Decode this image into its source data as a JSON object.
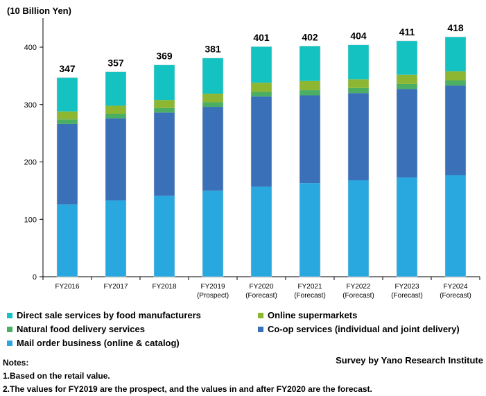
{
  "chart_data": {
    "type": "bar",
    "stacked": true,
    "unit_label": "(10 Billion Yen)",
    "categories": [
      "FY2016",
      "FY2017",
      "FY2018",
      "FY2019",
      "FY2020",
      "FY2021",
      "FY2022",
      "FY2023",
      "FY2024"
    ],
    "category_sublabels": [
      "",
      "",
      "",
      "(Prospect)",
      "(Forecast)",
      "(Forecast)",
      "(Forecast)",
      "(Forecast)",
      "(Forecast)"
    ],
    "totals": [
      347,
      357,
      369,
      381,
      401,
      402,
      404,
      411,
      418
    ],
    "series": [
      {
        "name": "Mail order business (online & catalog)",
        "color": "#29a8e0",
        "values": [
          126,
          133,
          141,
          150,
          157,
          163,
          168,
          173,
          177
        ]
      },
      {
        "name": "Co-op services (individual and joint delivery)",
        "color": "#3a70b8",
        "values": [
          140,
          143,
          145,
          146,
          157,
          153,
          152,
          154,
          156
        ]
      },
      {
        "name": "Natural food delivery services",
        "color": "#4aae63",
        "values": [
          8,
          8,
          8,
          8,
          8,
          9,
          9,
          9,
          9
        ]
      },
      {
        "name": "Online supermarkets",
        "color": "#8db733",
        "values": [
          14,
          14,
          14,
          15,
          16,
          16,
          15,
          16,
          16
        ]
      },
      {
        "name": "Direct sale services by food manufacturers",
        "color": "#14c2c2",
        "values": [
          59,
          59,
          61,
          62,
          63,
          61,
          60,
          59,
          60
        ]
      }
    ],
    "yticks": [
      0,
      100,
      200,
      300,
      400
    ],
    "ylim": [
      0,
      440
    ],
    "legend_position": "bottom",
    "legend_order": [
      "Direct sale services by food manufacturers",
      "Online supermarkets",
      "Natural food delivery services",
      "Co-op services (individual and joint delivery)",
      "Mail order business (online & catalog)"
    ]
  },
  "notes": {
    "heading": "Notes:",
    "lines": [
      "1.Based on the retail value.",
      "2.The values for FY2019 are the prospect, and the values in and after FY2020 are the forecast."
    ]
  },
  "source": "Survey by Yano Research Institute"
}
